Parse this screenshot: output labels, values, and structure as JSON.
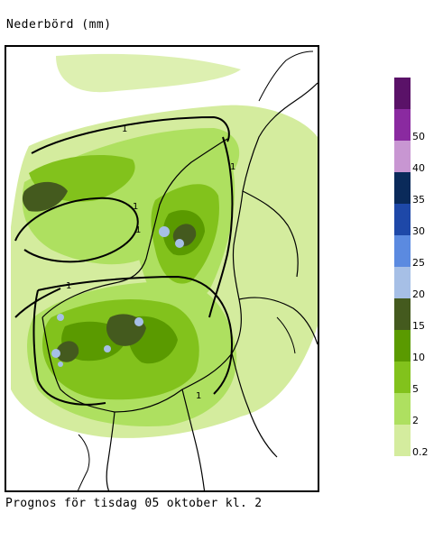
{
  "title": "Nederbörd (mm)",
  "caption": "Prognos för tisdag 05 oktober kl. 2",
  "legend": {
    "items": [
      {
        "label": "0.2",
        "color": "#d4ec9e"
      },
      {
        "label": "2",
        "color": "#aee060"
      },
      {
        "label": "5",
        "color": "#82c21c"
      },
      {
        "label": "10",
        "color": "#5a9a00"
      },
      {
        "label": "15",
        "color": "#445a1e"
      },
      {
        "label": "20",
        "color": "#a6bfe6"
      },
      {
        "label": "25",
        "color": "#5b8ae0"
      },
      {
        "label": "30",
        "color": "#1e48a8"
      },
      {
        "label": "35",
        "color": "#0a2a5a"
      },
      {
        "label": "40",
        "color": "#c896d2"
      },
      {
        "label": "50",
        "color": "#8a2aa0"
      },
      {
        "label": "",
        "color": "#5a1268"
      }
    ]
  },
  "map": {
    "contour_label": "1"
  }
}
